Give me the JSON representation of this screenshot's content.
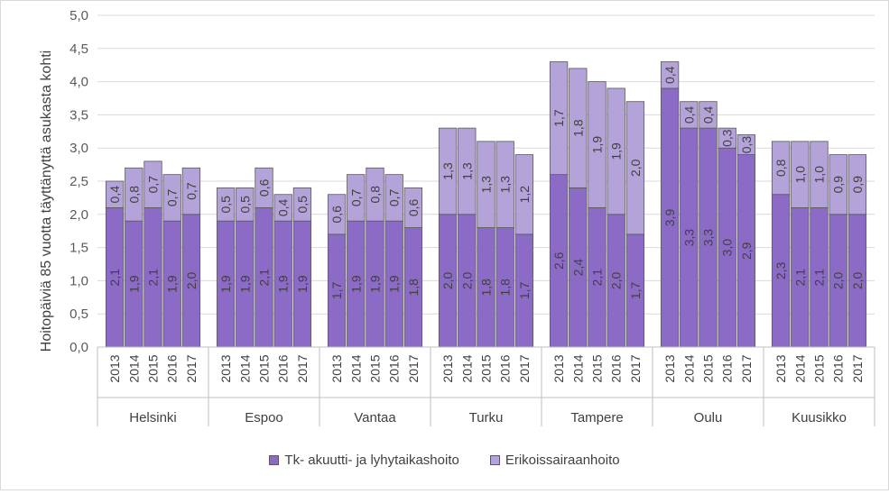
{
  "chart_data": {
    "type": "bar",
    "stacked": true,
    "ylabel": "Hoitopäiviä 85 vuotta täyttänyttä asukasta kohti",
    "ylim": [
      0,
      5
    ],
    "yticks": [
      "0,0",
      "0,5",
      "1,0",
      "1,5",
      "2,0",
      "2,5",
      "3,0",
      "3,5",
      "4,0",
      "4,5",
      "5,0"
    ],
    "grid": true,
    "legend_position": "bottom",
    "groups": [
      {
        "name": "Helsinki",
        "years": [
          "2013",
          "2014",
          "2015",
          "2016",
          "2017"
        ]
      },
      {
        "name": "Espoo",
        "years": [
          "2013",
          "2014",
          "2015",
          "2016",
          "2017"
        ]
      },
      {
        "name": "Vantaa",
        "years": [
          "2013",
          "2014",
          "2015",
          "2016",
          "2017"
        ]
      },
      {
        "name": "Turku",
        "years": [
          "2013",
          "2014",
          "2015",
          "2016",
          "2017"
        ]
      },
      {
        "name": "Tampere",
        "years": [
          "2013",
          "2014",
          "2015",
          "2016",
          "2017"
        ]
      },
      {
        "name": "Oulu",
        "years": [
          "2013",
          "2014",
          "2015",
          "2016",
          "2017"
        ]
      },
      {
        "name": "Kuusikko",
        "years": [
          "2013",
          "2014",
          "2015",
          "2016",
          "2017"
        ]
      }
    ],
    "series": [
      {
        "name": "Tk- akuutti- ja lyhytaikashoito",
        "color": "#8c6bc6",
        "values": [
          [
            2.1,
            1.9,
            2.1,
            1.9,
            2.0
          ],
          [
            1.9,
            1.9,
            2.1,
            1.9,
            1.9
          ],
          [
            1.7,
            1.9,
            1.9,
            1.9,
            1.8
          ],
          [
            2.0,
            2.0,
            1.8,
            1.8,
            1.7
          ],
          [
            2.6,
            2.4,
            2.1,
            2.0,
            1.7
          ],
          [
            3.9,
            3.3,
            3.3,
            3.0,
            2.9
          ],
          [
            2.3,
            2.1,
            2.1,
            2.0,
            2.0
          ]
        ],
        "labels": [
          [
            "2,1",
            "1,9",
            "2,1",
            "1,9",
            "2,0"
          ],
          [
            "1,9",
            "1,9",
            "2,1",
            "1,9",
            "1,9"
          ],
          [
            "1,7",
            "1,9",
            "1,9",
            "1,9",
            "1,8"
          ],
          [
            "2,0",
            "2,0",
            "1,8",
            "1,8",
            "1,7"
          ],
          [
            "2,6",
            "2,4",
            "2,1",
            "2,0",
            "1,7"
          ],
          [
            "3,9",
            "3,3",
            "3,3",
            "3,0",
            "2,9"
          ],
          [
            "2,3",
            "2,1",
            "2,1",
            "2,0",
            "2,0"
          ]
        ]
      },
      {
        "name": "Erikoissairaanhoito",
        "color": "#b4a3d8",
        "values": [
          [
            0.4,
            0.8,
            0.7,
            0.7,
            0.7
          ],
          [
            0.5,
            0.5,
            0.6,
            0.4,
            0.5
          ],
          [
            0.6,
            0.7,
            0.8,
            0.7,
            0.6
          ],
          [
            1.3,
            1.3,
            1.3,
            1.3,
            1.2
          ],
          [
            1.7,
            1.8,
            1.9,
            1.9,
            2.0
          ],
          [
            0.4,
            0.4,
            0.4,
            0.3,
            0.3
          ],
          [
            0.8,
            1.0,
            1.0,
            0.9,
            0.9
          ]
        ],
        "labels": [
          [
            "0,4",
            "0,8",
            "0,7",
            "0,7",
            "0,7"
          ],
          [
            "0,5",
            "0,5",
            "0,6",
            "0,4",
            "0,5"
          ],
          [
            "0,6",
            "0,7",
            "0,8",
            "0,7",
            "0,6"
          ],
          [
            "1,3",
            "1,3",
            "1,3",
            "1,3",
            "1,2"
          ],
          [
            "1,7",
            "1,8",
            "1,9",
            "1,9",
            "2,0"
          ],
          [
            "0,4",
            "0,4",
            "0,4",
            "0,3",
            "0,3"
          ],
          [
            "0,8",
            "1,0",
            "1,0",
            "0,9",
            "0,9"
          ]
        ]
      }
    ]
  }
}
